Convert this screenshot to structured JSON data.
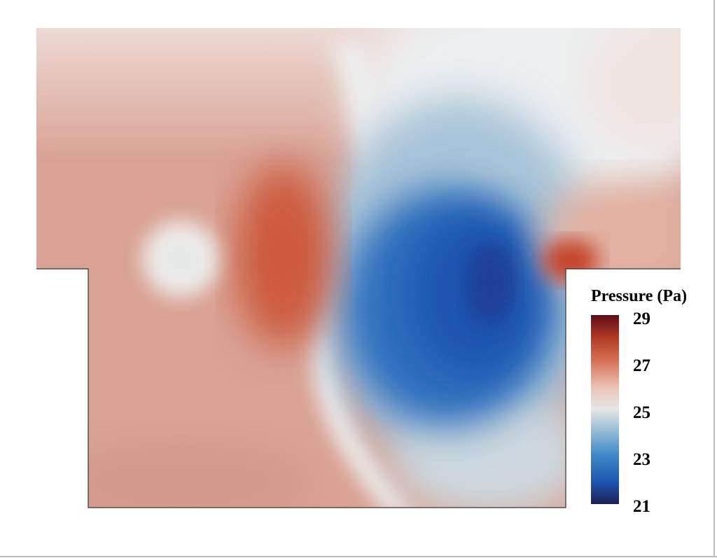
{
  "colorbar": {
    "title": "Pressure (Pa)",
    "ticks": [
      "29",
      "27",
      "25",
      "23",
      "21"
    ],
    "min": 21,
    "max": 29,
    "colors": [
      "#1b1f4f",
      "#1f56b2",
      "#3a86c6",
      "#8fb8d4",
      "#e6e6e6",
      "#e9c3b4",
      "#d6765a",
      "#b23a22",
      "#5e0d17"
    ]
  },
  "field": {
    "background_color": "#d9a294",
    "high_color": "#cc5a3e",
    "low_color": "#1c3f97",
    "neutral_color": "#edeeee",
    "outline_color": "#333333"
  }
}
